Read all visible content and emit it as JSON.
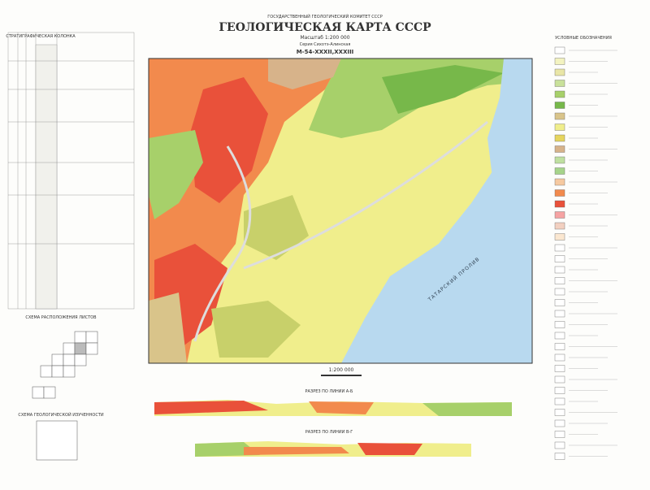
{
  "header": {
    "committee": "ГОСУДАРСТВЕННЫЙ ГЕОЛОГИЧЕСКИЙ КОМИТЕТ СССР",
    "title": "ГЕОЛОГИЧЕСКАЯ КАРТА СССР",
    "scale": "Масштаб 1:200 000",
    "series": "Серия Сихотэ-Алинская",
    "sheet": "М-54-XXXII,XXXIII"
  },
  "strat_column": {
    "title": "СТРАТИГРАФИЧЕСКАЯ КОЛОНКА"
  },
  "legend": {
    "title": "УСЛОВНЫЕ ОБОЗНАЧЕНИЯ"
  },
  "map": {
    "sea_label": "ТАТАРСКИЙ ПРОЛИВ",
    "scale_label": "1:200 000"
  },
  "sections": {
    "first": "РАЗРЕЗ ПО ЛИНИИ А-Б",
    "second": "РАЗРЕЗ ПО ЛИНИИ В-Г"
  },
  "schemes": {
    "sheets": "СХЕМА РАСПОЛОЖЕНИЯ ЛИСТОВ",
    "study": "СХЕМА ГЕОЛОГИЧЕСКОЙ ИЗУЧЕННОСТИ"
  }
}
